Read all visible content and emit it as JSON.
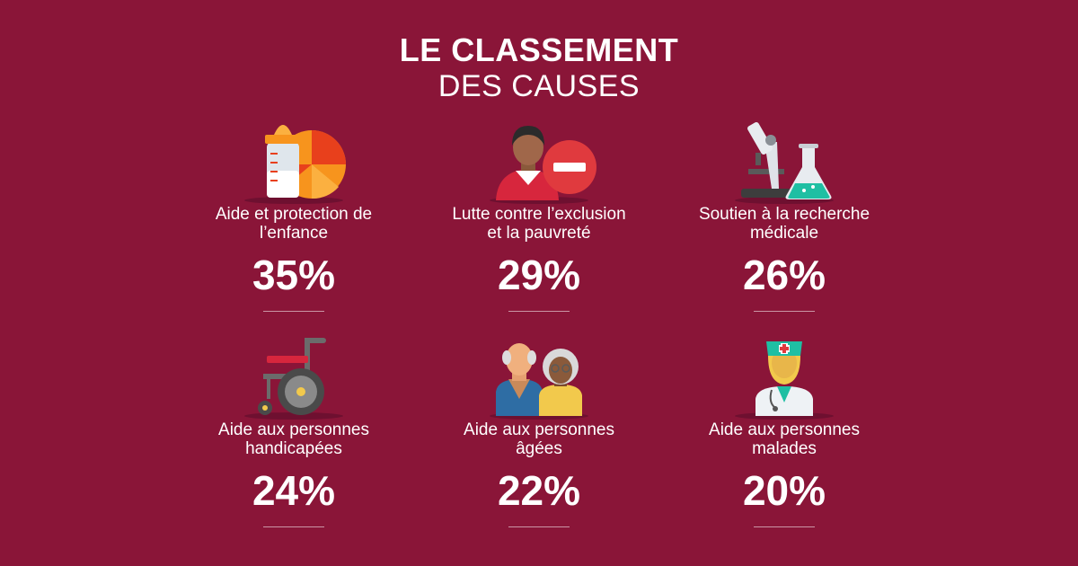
{
  "title": {
    "line1": "LE CLASSEMENT",
    "line2": "DES CAUSES"
  },
  "causes": [
    {
      "label_line1": "Aide et protection de",
      "label_line2": "l’enfance",
      "percent": "35%",
      "icon": "baby-bottle-ball-icon"
    },
    {
      "label_line1": "Lutte contre l’exclusion",
      "label_line2": "et la pauvreté",
      "percent": "29%",
      "icon": "person-minus-icon"
    },
    {
      "label_line1": "Soutien à la recherche",
      "label_line2": "médicale",
      "percent": "26%",
      "icon": "microscope-flask-icon"
    },
    {
      "label_line1": "Aide aux personnes",
      "label_line2": "handicapées",
      "percent": "24%",
      "icon": "wheelchair-icon"
    },
    {
      "label_line1": "Aide aux personnes",
      "label_line2": "âgées",
      "percent": "22%",
      "icon": "elderly-couple-icon"
    },
    {
      "label_line1": "Aide aux personnes",
      "label_line2": "malades",
      "percent": "20%",
      "icon": "nurse-icon"
    }
  ],
  "colors": {
    "background": "#8a1538",
    "text": "#ffffff"
  }
}
